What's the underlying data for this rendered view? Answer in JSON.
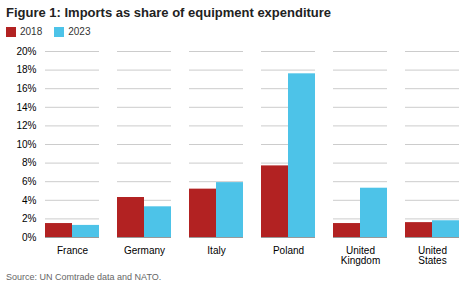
{
  "chart_data": {
    "type": "bar",
    "title": "Figure 1: Imports as share of equipment expenditure",
    "caption": "Source: UN Comtrade data and NATO.",
    "categories": [
      "France",
      "Germany",
      "Italy",
      "Poland",
      "United Kingdom",
      "United States"
    ],
    "series": [
      {
        "name": "2018",
        "color": "#b22222",
        "values": [
          1.5,
          4.3,
          5.2,
          7.7,
          1.5,
          1.6
        ]
      },
      {
        "name": "2023",
        "color": "#4dc3e8",
        "values": [
          1.3,
          3.3,
          5.9,
          17.6,
          5.3,
          1.8
        ]
      }
    ],
    "ylim": [
      0,
      20
    ],
    "yticks": [
      {
        "value": 0,
        "label": "0%"
      },
      {
        "value": 2,
        "label": "2%"
      },
      {
        "value": 4,
        "label": "4%"
      },
      {
        "value": 6,
        "label": "6%"
      },
      {
        "value": 8,
        "label": "8%"
      },
      {
        "value": 10,
        "label": "10%"
      },
      {
        "value": 12,
        "label": "12%"
      },
      {
        "value": 14,
        "label": "14%"
      },
      {
        "value": 16,
        "label": "16%"
      },
      {
        "value": 18,
        "label": "18%"
      },
      {
        "value": 20,
        "label": "20%"
      }
    ],
    "grid": true,
    "legend": "upper left"
  }
}
